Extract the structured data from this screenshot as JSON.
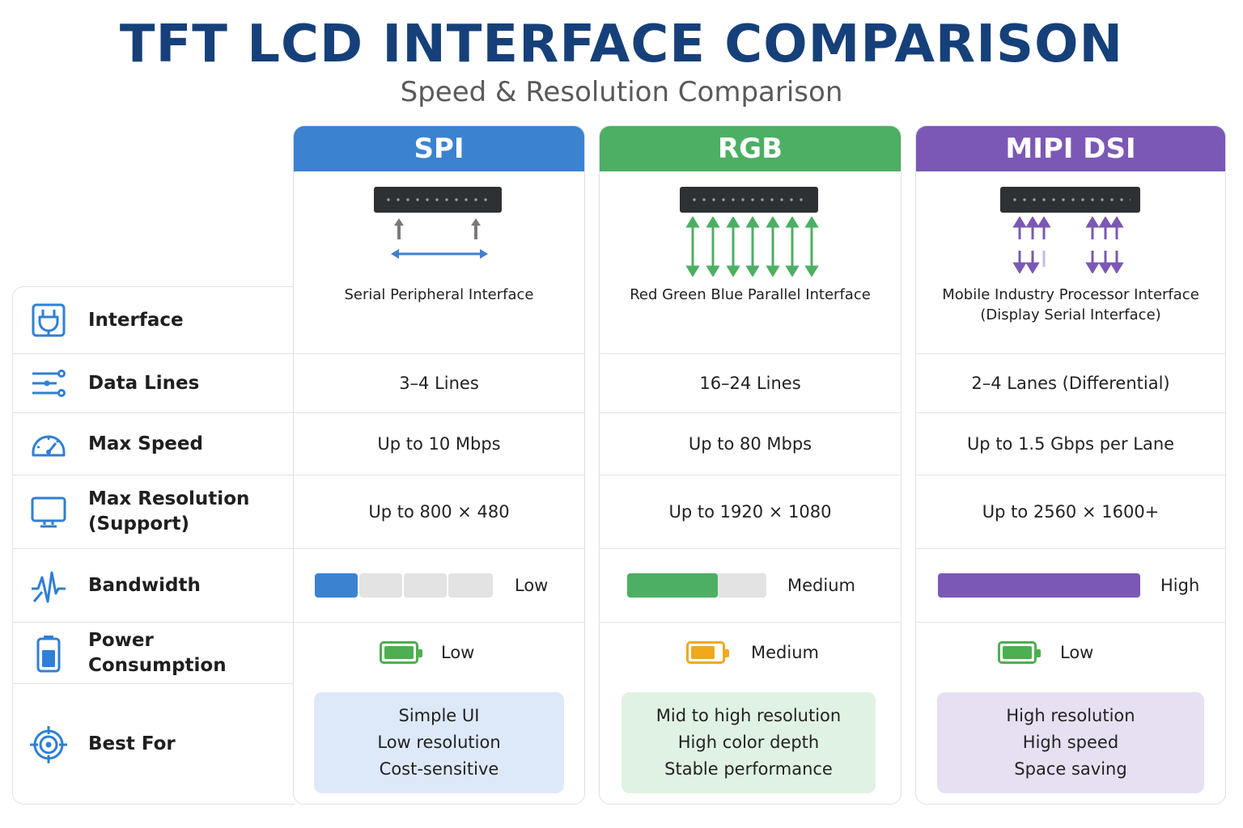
{
  "header": {
    "title": "TFT LCD INTERFACE COMPARISON",
    "subtitle": "Speed & Resolution Comparison"
  },
  "rows": [
    {
      "label": "Interface",
      "icon": "plug-icon"
    },
    {
      "label": "Data Lines",
      "icon": "data-lines-icon"
    },
    {
      "label": "Max Speed",
      "icon": "speedometer-icon"
    },
    {
      "label": "Max Resolution (Support)",
      "icon": "monitor-icon"
    },
    {
      "label": "Bandwidth",
      "icon": "waveform-icon"
    },
    {
      "label": "Power Consumption",
      "icon": "battery-icon"
    },
    {
      "label": "Best For",
      "icon": "target-icon"
    }
  ],
  "columns": [
    {
      "name": "SPI",
      "color": "#3b82d1",
      "description": "Serial Peripheral Interface",
      "data_lines": "3–4 Lines",
      "max_speed": "Up to 10 Mbps",
      "max_resolution": "Up to 800 × 480",
      "bandwidth": {
        "label": "Low",
        "level": 0.25
      },
      "power": {
        "label": "Low",
        "battery_color": "#4caf50"
      },
      "best_for": [
        "Simple UI",
        "Low resolution",
        "Cost-sensitive"
      ],
      "best_bg": "#dde9f9"
    },
    {
      "name": "RGB",
      "color": "#4caf63",
      "description": "Red Green Blue Parallel Interface",
      "data_lines": "16–24 Lines",
      "max_speed": "Up to 80 Mbps",
      "max_resolution": "Up to 1920 × 1080",
      "bandwidth": {
        "label": "Medium",
        "level": 0.65
      },
      "power": {
        "label": "Medium",
        "battery_color": "#f0a91c"
      },
      "best_for": [
        "Mid to high resolution",
        "High color depth",
        "Stable performance"
      ],
      "best_bg": "#e0f2e3"
    },
    {
      "name": "MIPI DSI",
      "color": "#7b58b5",
      "description": "Mobile Industry Processor Interface (Display Serial Interface)",
      "data_lines": "2–4 Lanes (Differential)",
      "max_speed": "Up to 1.5 Gbps per Lane",
      "max_resolution": "Up to 2560 × 1600+",
      "bandwidth": {
        "label": "High",
        "level": 1.0
      },
      "power": {
        "label": "Low",
        "battery_color": "#4caf50"
      },
      "best_for": [
        "High resolution",
        "High speed",
        "Space saving"
      ],
      "best_bg": "#e6e0f2"
    }
  ]
}
